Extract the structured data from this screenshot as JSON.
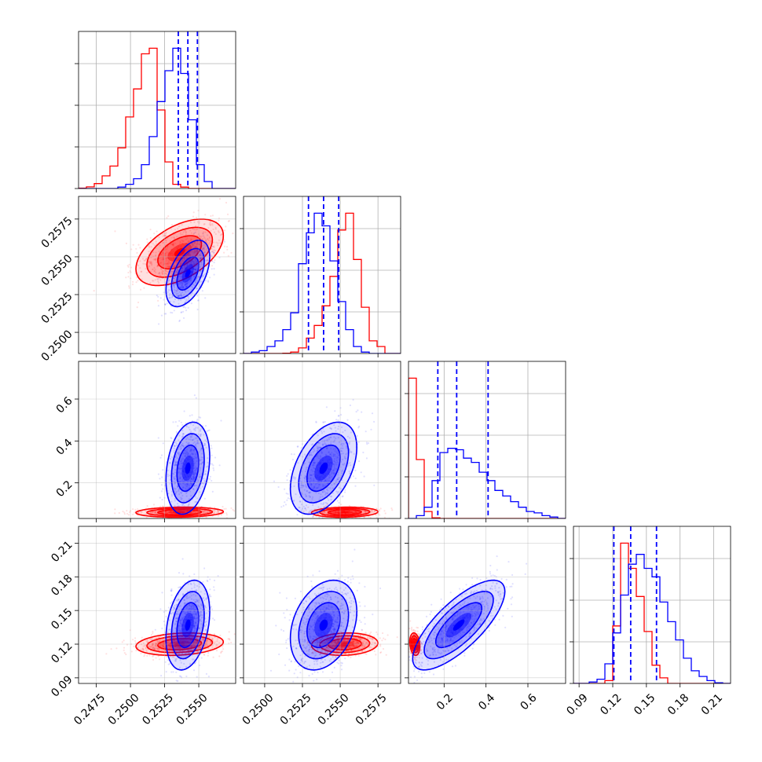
{
  "colors": {
    "red": "#ff0000",
    "blue": "#0000ff",
    "grid": "#b0b0b0",
    "axis": "#000000"
  },
  "chart_data": {
    "type": "corner",
    "title": "",
    "dims": [
      {
        "range": [
          0.2462,
          0.2577
        ],
        "ticks": [
          0.2475,
          0.25,
          0.2525,
          0.255
        ],
        "tick_labels": [
          "0.2475",
          "0.2500",
          "0.2525",
          "0.2550"
        ]
      },
      {
        "range": [
          0.2486,
          0.259
        ],
        "ticks": [
          0.25,
          0.2525,
          0.255,
          0.2575
        ],
        "tick_labels": [
          "0.2500",
          "0.2525",
          "0.2550",
          "0.2575"
        ]
      },
      {
        "range": [
          0.03,
          0.78
        ],
        "ticks": [
          0.2,
          0.4,
          0.6
        ],
        "tick_labels": [
          "0.2",
          "0.4",
          "0.6"
        ]
      },
      {
        "range": [
          0.085,
          0.225
        ],
        "ticks": [
          0.09,
          0.12,
          0.15,
          0.18,
          0.21
        ],
        "tick_labels": [
          "0.09",
          "0.12",
          "0.15",
          "0.18",
          "0.21"
        ]
      }
    ],
    "series": [
      {
        "color": "red",
        "mean": [
          0.2536,
          0.2553,
          0.06,
          0.12
        ],
        "sd": [
          0.0016,
          0.0011,
          0.012,
          0.005
        ],
        "corr": [
          [
            1,
            0.5,
            0.1,
            0.2
          ],
          [
            0.5,
            1,
            0.1,
            0.1
          ],
          [
            0.1,
            0.1,
            1,
            -0.2
          ],
          [
            0.2,
            0.1,
            -0.2,
            1
          ]
        ],
        "hist": [
          [
            0.2462,
            0.2577,
            [
              0.003,
              0.012,
              0.035,
              0.09,
              0.16,
              0.29,
              0.51,
              0.71,
              0.96,
              1.0,
              0.56,
              0.19,
              0.03,
              0.01,
              0.0,
              0.0,
              0.0,
              0.0,
              0.0,
              0.0
            ]
          ],
          [
            0.2486,
            0.259,
            [
              0.0,
              0.0,
              0.0,
              0.0,
              0.0,
              0.002,
              0.01,
              0.04,
              0.11,
              0.2,
              0.34,
              0.55,
              0.88,
              1.0,
              0.67,
              0.33,
              0.09,
              0.05,
              0.0,
              0.0
            ]
          ],
          [
            0.03,
            0.78,
            [
              1.0,
              0.42,
              0.05,
              0.005,
              0.0,
              0.0,
              0.0,
              0.0,
              0.0,
              0.0,
              0.0,
              0.0,
              0.0,
              0.0,
              0.0,
              0.0,
              0.0,
              0.0,
              0.0,
              0.0
            ]
          ],
          [
            0.085,
            0.225,
            [
              0.0,
              0.0,
              0.0,
              0.0,
              0.02,
              0.41,
              1.0,
              0.82,
              0.62,
              0.37,
              0.13,
              0.04,
              0.0,
              0.0,
              0.0,
              0.0,
              0.0,
              0.0,
              0.0,
              0.0
            ]
          ]
        ]
      },
      {
        "color": "blue",
        "mean": [
          0.2542,
          0.2539,
          0.27,
          0.137
        ],
        "sd": [
          0.0008,
          0.0011,
          0.11,
          0.02
        ],
        "corr": [
          [
            1,
            0.5,
            0.25,
            0.3
          ],
          [
            0.5,
            1,
            0.45,
            0.3
          ],
          [
            0.25,
            0.45,
            1,
            0.75
          ],
          [
            0.3,
            0.3,
            0.75,
            1
          ]
        ],
        "hist": [
          [
            0.2462,
            0.2577,
            [
              0.0,
              0.0,
              0.0,
              0.0,
              0.0,
              0.01,
              0.03,
              0.07,
              0.17,
              0.37,
              0.62,
              0.84,
              1.0,
              0.82,
              0.49,
              0.17,
              0.05,
              0.0,
              0.0,
              0.0
            ]
          ],
          [
            0.2486,
            0.259,
            [
              0.0,
              0.01,
              0.02,
              0.05,
              0.09,
              0.17,
              0.29,
              0.64,
              0.86,
              1.0,
              0.91,
              0.66,
              0.37,
              0.17,
              0.05,
              0.01,
              0.0,
              0.0,
              0.0,
              0.0
            ]
          ],
          [
            0.03,
            0.78,
            [
              0.0,
              0.02,
              0.08,
              0.27,
              0.47,
              0.5,
              0.49,
              0.43,
              0.4,
              0.33,
              0.27,
              0.2,
              0.16,
              0.12,
              0.08,
              0.05,
              0.04,
              0.02,
              0.01,
              0.0
            ]
          ],
          [
            0.085,
            0.225,
            [
              0.0,
              0.0,
              0.01,
              0.03,
              0.14,
              0.36,
              0.63,
              0.85,
              0.92,
              0.82,
              0.76,
              0.58,
              0.44,
              0.31,
              0.18,
              0.09,
              0.05,
              0.02,
              0.005,
              0.0
            ]
          ]
        ]
      }
    ],
    "quantile_lines": [
      [
        0.2535,
        0.2542,
        0.2549
      ],
      [
        0.2529,
        0.2539,
        0.2549
      ],
      [
        0.17,
        0.26,
        0.41
      ],
      [
        0.121,
        0.136,
        0.159
      ]
    ],
    "grid": true,
    "legend": "none"
  }
}
